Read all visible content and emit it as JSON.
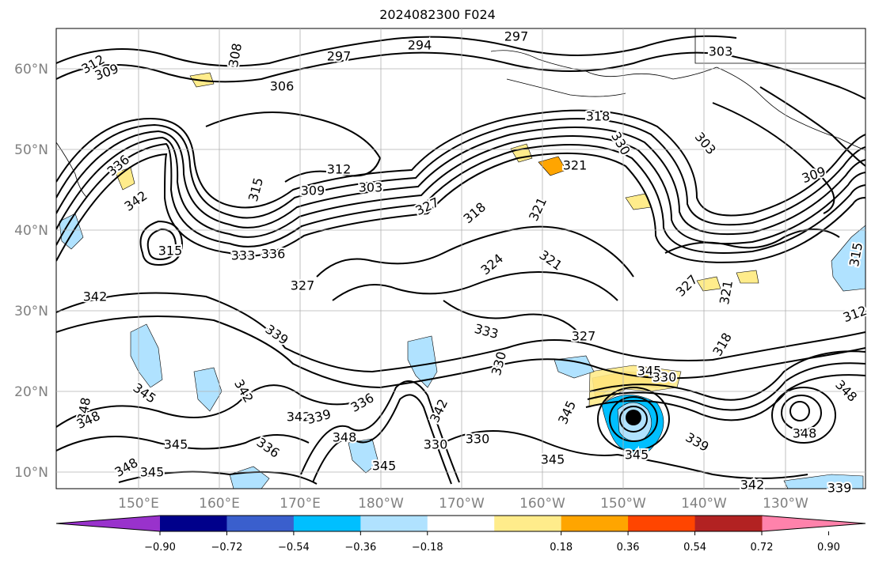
{
  "title": "2024082300 F024",
  "map": {
    "lat_labels": [
      "60°N",
      "50°N",
      "40°N",
      "30°N",
      "20°N",
      "10°N"
    ],
    "lon_labels": [
      "150°E",
      "160°E",
      "170°E",
      "180°W",
      "170°W",
      "160°W",
      "150°W",
      "140°W",
      "130°W"
    ],
    "contour_labels": [
      {
        "text": "312"
      },
      {
        "text": "309"
      },
      {
        "text": "297"
      },
      {
        "text": "294"
      },
      {
        "text": "297"
      },
      {
        "text": "303"
      },
      {
        "text": "306"
      },
      {
        "text": "308"
      },
      {
        "text": "318"
      },
      {
        "text": "330"
      },
      {
        "text": "303"
      },
      {
        "text": "309"
      },
      {
        "text": "336"
      },
      {
        "text": "342"
      },
      {
        "text": "312"
      },
      {
        "text": "309"
      },
      {
        "text": "303"
      },
      {
        "text": "315"
      },
      {
        "text": "327"
      },
      {
        "text": "321"
      },
      {
        "text": "318"
      },
      {
        "text": "321"
      },
      {
        "text": "315"
      },
      {
        "text": "333"
      },
      {
        "text": "336"
      },
      {
        "text": "324"
      },
      {
        "text": "321"
      },
      {
        "text": "327"
      },
      {
        "text": "321"
      },
      {
        "text": "315"
      },
      {
        "text": "327"
      },
      {
        "text": "342"
      },
      {
        "text": "339"
      },
      {
        "text": "333"
      },
      {
        "text": "330"
      },
      {
        "text": "327"
      },
      {
        "text": "318"
      },
      {
        "text": "312"
      },
      {
        "text": "345"
      },
      {
        "text": "342"
      },
      {
        "text": "336"
      },
      {
        "text": "342"
      },
      {
        "text": "339"
      },
      {
        "text": "348"
      },
      {
        "text": "336"
      },
      {
        "text": "345"
      },
      {
        "text": "345"
      },
      {
        "text": "348"
      },
      {
        "text": "345"
      },
      {
        "text": "348"
      },
      {
        "text": "348"
      },
      {
        "text": "345"
      },
      {
        "text": "345"
      },
      {
        "text": "330"
      },
      {
        "text": "330"
      },
      {
        "text": "345"
      },
      {
        "text": "339"
      },
      {
        "text": "348"
      },
      {
        "text": "342"
      },
      {
        "text": "339"
      },
      {
        "text": "348"
      },
      {
        "text": "345"
      },
      {
        "text": "342"
      },
      {
        "text": "330"
      }
    ]
  },
  "colorbar": {
    "labels": [
      "−0.90",
      "−0.72",
      "−0.54",
      "−0.36",
      "−0.18",
      "0.18",
      "0.36",
      "0.54",
      "0.72",
      "0.90"
    ],
    "colors": [
      "#9932cc",
      "#00008b",
      "#3a5fcd",
      "#00bfff",
      "#b0e2ff",
      "#ffffff",
      "#ffec8b",
      "#ffa500",
      "#ff4500",
      "#b22222",
      "#ff82ab"
    ]
  }
}
